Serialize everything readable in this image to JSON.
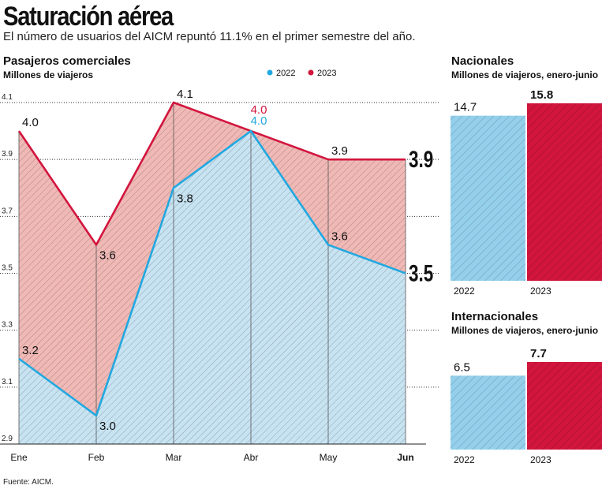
{
  "title": "Saturación aérea",
  "subtitle": "El número de usuarios del AICM repuntó 11.1% en el primer semestre del año.",
  "source": "Fuente: AICM.",
  "colors": {
    "c2022": "#22a8e0",
    "c2023": "#d2153d",
    "fill2022": "#c7e3f2",
    "fill2023": "#f0b9b6"
  },
  "line_chart": {
    "title": "Pasajeros comerciales",
    "subtitle": "Millones de viajeros"
  },
  "nacionales": {
    "title": "Nacionales",
    "subtitle": "Millones de viajeros, enero-junio"
  },
  "internacionales": {
    "title": "Internacionales",
    "subtitle": "Millones de viajeros, enero-junio"
  },
  "chart_data": [
    {
      "type": "area",
      "title": "Pasajeros comerciales",
      "ylabel": "Millones de viajeros",
      "categories": [
        "Ene",
        "Feb",
        "Mar",
        "Abr",
        "May",
        "Jun"
      ],
      "ylim": [
        2.9,
        4.1
      ],
      "yticks": [
        "2.9",
        "3.1",
        "3.3",
        "3.5",
        "3.7",
        "3.9",
        "4.1"
      ],
      "series": [
        {
          "name": "2022",
          "values": [
            3.2,
            3.0,
            3.8,
            4.0,
            3.6,
            3.5
          ],
          "labels": [
            "3.2",
            "3.0",
            "3.8",
            "4.0",
            "3.6",
            "3.5"
          ]
        },
        {
          "name": "2023",
          "values": [
            4.0,
            3.6,
            4.1,
            4.0,
            3.9,
            3.9
          ],
          "labels": [
            "4.0",
            "3.6",
            "4.1",
            "4.0",
            "3.9",
            "3.9"
          ]
        }
      ],
      "legend": "top-center",
      "grid": true
    },
    {
      "type": "bar",
      "title": "Nacionales",
      "ylabel": "Millones de viajeros, enero-junio",
      "categories": [
        "2022",
        "2023"
      ],
      "values": [
        14.7,
        15.8
      ],
      "labels": [
        "14.7",
        "15.8"
      ]
    },
    {
      "type": "bar",
      "title": "Internacionales",
      "ylabel": "Millones de viajeros, enero-junio",
      "categories": [
        "2022",
        "2023"
      ],
      "values": [
        6.5,
        7.7
      ],
      "labels": [
        "6.5",
        "7.7"
      ]
    }
  ]
}
